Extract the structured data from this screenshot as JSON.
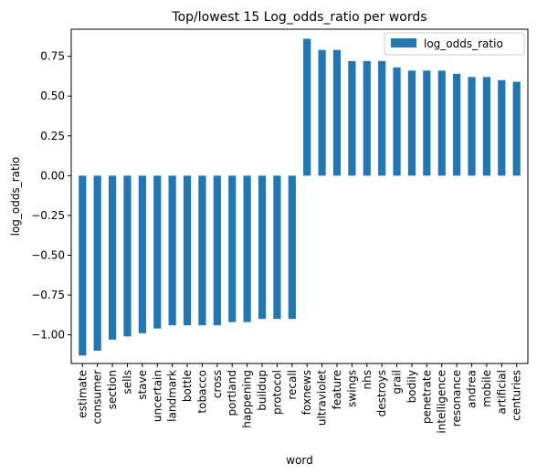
{
  "chart_data": {
    "type": "bar",
    "title": "Top/lowest 15 Log_odds_ratio per words",
    "xlabel": "word",
    "ylabel": "log_odds_ratio",
    "ylim": [
      -1.18,
      0.92
    ],
    "yticks": [
      -1.0,
      -0.75,
      -0.5,
      -0.25,
      0.0,
      0.25,
      0.5,
      0.75
    ],
    "ytick_labels": [
      "−1.00",
      "−0.75",
      "−0.50",
      "−0.25",
      "0.00",
      "0.25",
      "0.50",
      "0.75"
    ],
    "legend_position": "top-right",
    "grid": false,
    "bar_color": "#1f77b4",
    "categories": [
      "estimate",
      "consumer",
      "section",
      "sells",
      "stave",
      "uncertain",
      "landmark",
      "bottle",
      "tobacco",
      "cross",
      "portland",
      "happening",
      "buildup",
      "protocol",
      "recall",
      "foxnews",
      "ultraviolet",
      "feature",
      "swings",
      "nhs",
      "destroys",
      "grail",
      "bodily",
      "penetrate",
      "intelligence",
      "resonance",
      "andrea",
      "mobile",
      "artificial",
      "centuries"
    ],
    "series": [
      {
        "name": "log_odds_ratio",
        "values": [
          -1.13,
          -1.1,
          -1.03,
          -1.01,
          -0.99,
          -0.96,
          -0.94,
          -0.94,
          -0.94,
          -0.94,
          -0.92,
          -0.92,
          -0.9,
          -0.9,
          -0.9,
          0.86,
          0.79,
          0.79,
          0.72,
          0.72,
          0.72,
          0.68,
          0.66,
          0.66,
          0.66,
          0.64,
          0.62,
          0.62,
          0.6,
          0.59
        ]
      }
    ]
  }
}
